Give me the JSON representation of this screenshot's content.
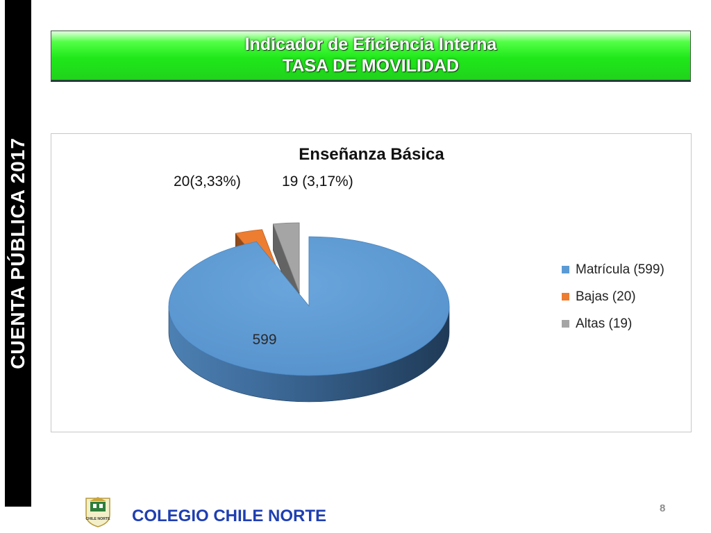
{
  "side_banner": {
    "text": "CUENTA PÚBLICA 2017"
  },
  "header": {
    "line1": "Indicador de Eficiencia Interna",
    "line2": "TASA DE MOVILIDAD"
  },
  "chart_data": {
    "type": "pie",
    "title": "Enseñanza Básica",
    "categories": [
      "Matrícula (599)",
      "Bajas (20)",
      "Altas (19)"
    ],
    "values": [
      599,
      20,
      19
    ],
    "data_labels": [
      "599",
      "20(3,33%)",
      "19 (3,17%)"
    ],
    "colors": [
      "#5b9bd5",
      "#ed7d31",
      "#a5a5a5"
    ],
    "exploded": [
      false,
      true,
      true
    ],
    "three_d": true,
    "legend": "right"
  },
  "footer": {
    "school": "COLEGIO CHILE NORTE",
    "logo_text": "CHILE NORTE",
    "page_number": "8"
  }
}
